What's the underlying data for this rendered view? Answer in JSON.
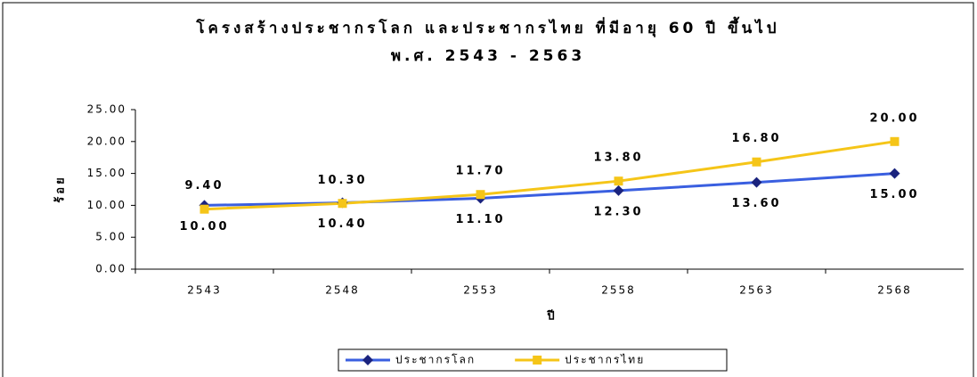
{
  "chart_data": {
    "type": "line",
    "title": "โครงสร้างประชากรโลก และประชากรไทย ที่มีอายุ 60 ปี ขึ้นไป",
    "subtitle": "พ.ศ. 2543 - 2563",
    "x_label": "ปี",
    "y_label": "ร้อย",
    "categories": [
      "2543",
      "2548",
      "2553",
      "2558",
      "2563",
      "2568"
    ],
    "series": [
      {
        "name": "ประชากรโลก",
        "color": "#3a5fe0",
        "marker": "diamond",
        "marker_color": "#1a237e",
        "label_side": "below",
        "values": [
          10.0,
          10.4,
          11.1,
          12.3,
          13.6,
          15.0
        ],
        "value_labels": [
          "10.00",
          "10.40",
          "11.10",
          "12.30",
          "13.60",
          "15.00"
        ]
      },
      {
        "name": "ประชากรไทย",
        "color": "#f5c518",
        "marker": "square",
        "marker_color": "#f5c518",
        "label_side": "above",
        "values": [
          9.4,
          10.3,
          11.7,
          13.8,
          16.8,
          20.0
        ],
        "value_labels": [
          "9.40",
          "10.30",
          "11.70",
          "13.80",
          "16.80",
          "20.00"
        ]
      }
    ],
    "ylim": [
      0,
      25
    ],
    "yticks": [
      {
        "value": 0,
        "label": "0.00"
      },
      {
        "value": 5,
        "label": "5.00"
      },
      {
        "value": 10,
        "label": "10.00"
      },
      {
        "value": 15,
        "label": "15.00"
      },
      {
        "value": 20,
        "label": "20.00"
      },
      {
        "value": 25,
        "label": "25.00"
      }
    ],
    "grid": false,
    "legend": "bottom"
  }
}
